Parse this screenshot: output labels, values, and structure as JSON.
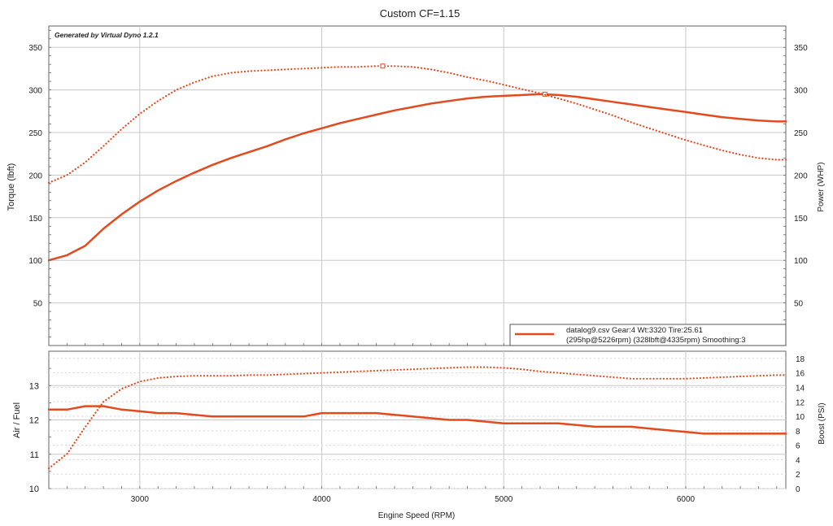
{
  "chart_data": [
    {
      "type": "line",
      "title": "Custom CF=1.15",
      "watermark": "Generated by Virtual Dyno 1.2.1",
      "ylabel_left": "Torque (lbft)",
      "ylabel_right": "Power (WHP)",
      "xlim": [
        2500,
        6550
      ],
      "ylim": [
        0,
        375
      ],
      "y_ticks": [
        50,
        100,
        150,
        200,
        250,
        300,
        350
      ],
      "grid": true,
      "legend": {
        "placement": "bottom-right",
        "line1": "datalog9.csv Gear:4 Wt:3320 Tire:25.61",
        "line2": "(295hp@5226rpm) (328lbft@4335rpm) Smoothing:3"
      },
      "series": [
        {
          "role": "power",
          "style": "solid",
          "color": "#e34a1e",
          "x": [
            2500,
            2600,
            2700,
            2800,
            2900,
            3000,
            3100,
            3200,
            3300,
            3400,
            3500,
            3600,
            3700,
            3800,
            3900,
            4000,
            4100,
            4200,
            4300,
            4400,
            4500,
            4600,
            4700,
            4800,
            4900,
            5000,
            5100,
            5200,
            5300,
            5400,
            5500,
            5600,
            5700,
            5800,
            5900,
            6000,
            6100,
            6200,
            6300,
            6400,
            6500,
            6550
          ],
          "y": [
            100,
            106,
            117,
            137,
            154,
            169,
            182,
            193,
            203,
            212,
            220,
            227,
            234,
            242,
            249,
            255,
            261,
            266,
            271,
            276,
            280,
            284,
            287,
            290,
            292,
            293,
            294,
            295,
            294,
            292,
            289,
            286,
            283,
            280,
            277,
            274,
            271,
            268,
            266,
            264,
            263,
            263
          ],
          "peak": {
            "x": 5226,
            "y": 295
          }
        },
        {
          "role": "torque",
          "style": "dotted",
          "color": "#e34a1e",
          "x": [
            2500,
            2600,
            2700,
            2800,
            2900,
            3000,
            3100,
            3200,
            3300,
            3400,
            3500,
            3600,
            3700,
            3800,
            3900,
            4000,
            4100,
            4200,
            4300,
            4400,
            4500,
            4600,
            4700,
            4800,
            4900,
            5000,
            5100,
            5200,
            5300,
            5400,
            5500,
            5600,
            5700,
            5800,
            5900,
            6000,
            6100,
            6200,
            6300,
            6400,
            6500,
            6550
          ],
          "y": [
            191,
            200,
            215,
            234,
            254,
            272,
            287,
            300,
            309,
            316,
            320,
            322,
            323,
            324,
            325,
            326,
            327,
            327,
            328,
            328,
            327,
            324,
            320,
            315,
            311,
            306,
            301,
            296,
            290,
            284,
            277,
            270,
            262,
            255,
            248,
            241,
            235,
            229,
            224,
            220,
            218,
            218
          ],
          "peak": {
            "x": 4335,
            "y": 328
          }
        }
      ]
    },
    {
      "type": "line",
      "xlabel": "Engine Speed (RPM)",
      "ylabel_left": "Air / Fuel",
      "ylabel_right": "Boost (PSI)",
      "xlim": [
        2500,
        6550
      ],
      "x_ticks": [
        3000,
        4000,
        5000,
        6000
      ],
      "ylim_left": [
        10,
        14
      ],
      "y_ticks_left": [
        10,
        11,
        12,
        13
      ],
      "ylim_right": [
        0,
        19
      ],
      "y_ticks_right": [
        0,
        2,
        4,
        6,
        8,
        10,
        12,
        14,
        16,
        18
      ],
      "grid": true,
      "series": [
        {
          "role": "air-fuel",
          "style": "solid",
          "color": "#e34a1e",
          "axis": "left",
          "x": [
            2500,
            2600,
            2700,
            2800,
            2900,
            3000,
            3100,
            3200,
            3300,
            3400,
            3500,
            3600,
            3700,
            3800,
            3900,
            4000,
            4100,
            4200,
            4300,
            4400,
            4500,
            4600,
            4700,
            4800,
            4900,
            5000,
            5100,
            5200,
            5300,
            5400,
            5500,
            5600,
            5700,
            5800,
            5900,
            6000,
            6100,
            6200,
            6300,
            6400,
            6500,
            6550
          ],
          "y": [
            12.3,
            12.3,
            12.4,
            12.4,
            12.3,
            12.25,
            12.2,
            12.2,
            12.15,
            12.1,
            12.1,
            12.1,
            12.1,
            12.1,
            12.1,
            12.2,
            12.2,
            12.2,
            12.2,
            12.15,
            12.1,
            12.05,
            12.0,
            12.0,
            11.95,
            11.9,
            11.9,
            11.9,
            11.9,
            11.85,
            11.8,
            11.8,
            11.8,
            11.75,
            11.7,
            11.65,
            11.6,
            11.6,
            11.6,
            11.6,
            11.6,
            11.6
          ]
        },
        {
          "role": "boost",
          "style": "dotted",
          "color": "#e34a1e",
          "axis": "right",
          "x": [
            2500,
            2600,
            2700,
            2800,
            2900,
            3000,
            3100,
            3200,
            3300,
            3400,
            3500,
            3600,
            3700,
            3800,
            3900,
            4000,
            4100,
            4200,
            4300,
            4400,
            4500,
            4600,
            4700,
            4800,
            4900,
            5000,
            5100,
            5200,
            5300,
            5400,
            5500,
            5600,
            5700,
            5800,
            5900,
            6000,
            6100,
            6200,
            6300,
            6400,
            6500,
            6550
          ],
          "y": [
            2.8,
            4.8,
            8.5,
            12,
            13.8,
            14.8,
            15.3,
            15.5,
            15.6,
            15.6,
            15.6,
            15.7,
            15.7,
            15.8,
            15.9,
            16.0,
            16.1,
            16.2,
            16.3,
            16.4,
            16.5,
            16.6,
            16.7,
            16.8,
            16.8,
            16.7,
            16.5,
            16.2,
            16.0,
            15.8,
            15.6,
            15.4,
            15.2,
            15.2,
            15.2,
            15.2,
            15.3,
            15.4,
            15.5,
            15.6,
            15.7,
            15.7
          ]
        }
      ]
    }
  ]
}
